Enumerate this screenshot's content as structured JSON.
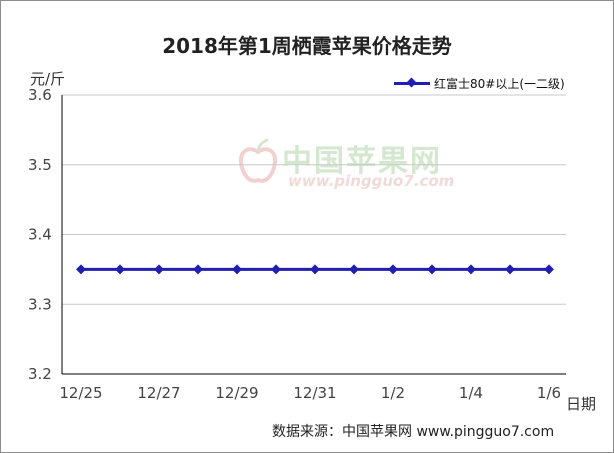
{
  "title": "2018年第1周栖霞苹果价格走势",
  "y_unit_label": "元/斤",
  "x_unit_label": "日期",
  "source": "数据来源：中国苹果网 www.pingguo7.com",
  "watermark": {
    "cn": "中国苹果网",
    "url": "www.pingguo7.com"
  },
  "colors": {
    "series": "#1f1fb4",
    "axis": "#000000",
    "grid": "#c8c8c8"
  },
  "chart_data": {
    "type": "line",
    "title": "2018年第1周栖霞苹果价格走势",
    "xlabel": "日期",
    "ylabel": "元/斤",
    "ylim": [
      3.2,
      3.6
    ],
    "y_ticks": [
      "3.2",
      "3.3",
      "3.4",
      "3.5",
      "3.6"
    ],
    "x_tick_labels": [
      "12/25",
      "12/27",
      "12/29",
      "12/31",
      "1/2",
      "1/4",
      "1/6"
    ],
    "x": [
      "12/25",
      "12/26",
      "12/27",
      "12/28",
      "12/29",
      "12/30",
      "12/31",
      "1/1",
      "1/2",
      "1/3",
      "1/4",
      "1/5",
      "1/6"
    ],
    "series": [
      {
        "name": "红富士80#以上(一二级)",
        "values": [
          3.35,
          3.35,
          3.35,
          3.35,
          3.35,
          3.35,
          3.35,
          3.35,
          3.35,
          3.35,
          3.35,
          3.35,
          3.35
        ]
      }
    ],
    "grid": "horizontal",
    "legend_position": "top-right"
  }
}
